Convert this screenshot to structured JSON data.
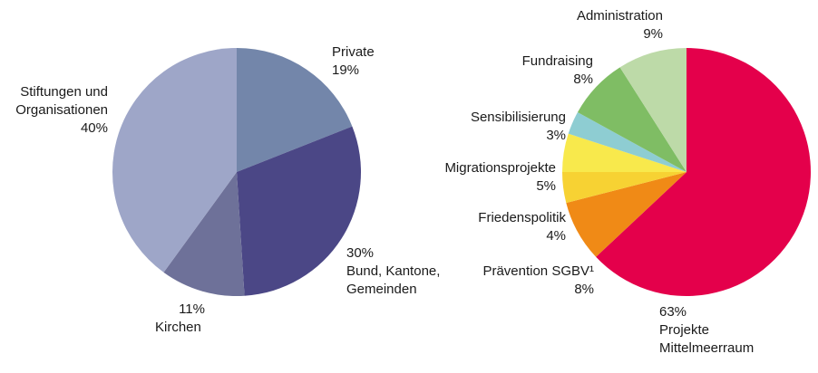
{
  "chart_data": [
    {
      "type": "pie",
      "slices": [
        {
          "key": "private",
          "label": [
            "Private"
          ],
          "value": 19,
          "value_label": "19%",
          "color": "#7386aa"
        },
        {
          "key": "bund",
          "label": [
            "Bund, Kantone,",
            "Gemeinden"
          ],
          "value": 30,
          "value_label": "30%",
          "color": "#4b4786"
        },
        {
          "key": "kirchen",
          "label": [
            "Kirchen"
          ],
          "value": 11,
          "value_label": "11%",
          "color": "#6e7199"
        },
        {
          "key": "stiftungen",
          "label": [
            "Stiftungen und",
            "Organisationen"
          ],
          "value": 40,
          "value_label": "40%",
          "color": "#9ea6c8"
        }
      ]
    },
    {
      "type": "pie",
      "slices": [
        {
          "key": "projekte",
          "label": [
            "Projekte",
            "Mittelmeerraum"
          ],
          "value": 63,
          "value_label": "63%",
          "color": "#e4004b"
        },
        {
          "key": "praevention",
          "label": [
            "Prävention SGBV¹"
          ],
          "value": 8,
          "value_label": "8%",
          "color": "#f08a16"
        },
        {
          "key": "frieden",
          "label": [
            "Friedenspolitik"
          ],
          "value": 4,
          "value_label": "4%",
          "color": "#f7d233"
        },
        {
          "key": "migration",
          "label": [
            "Migrationsprojekte"
          ],
          "value": 5,
          "value_label": "5%",
          "color": "#f8e94c"
        },
        {
          "key": "sensibilisierung",
          "label": [
            "Sensibilisierung"
          ],
          "value": 3,
          "value_label": "3%",
          "color": "#8ecdd2"
        },
        {
          "key": "fundraising",
          "label": [
            "Fundraising"
          ],
          "value": 8,
          "value_label": "8%",
          "color": "#7fbd64"
        },
        {
          "key": "administration",
          "label": [
            "Administration"
          ],
          "value": 9,
          "value_label": "9%",
          "color": "#bddaa8"
        }
      ]
    }
  ]
}
